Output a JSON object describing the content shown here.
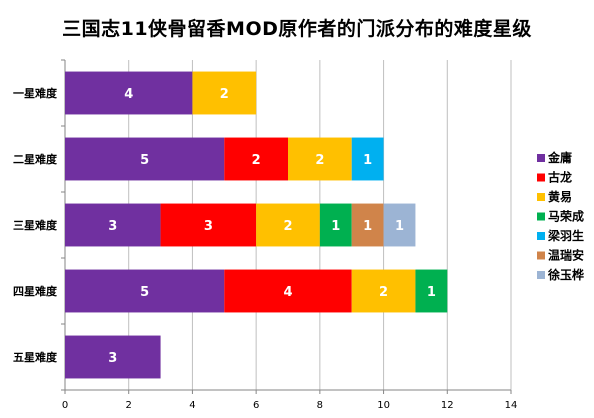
{
  "chart_data": {
    "type": "bar",
    "orientation": "horizontal",
    "stacked": true,
    "title": "三国志11侠骨留香MOD原作者的门派分布的难度星级",
    "categories": [
      "一星难度",
      "二星难度",
      "三星难度",
      "四星难度",
      "五星难度"
    ],
    "series": [
      {
        "name": "金庸",
        "color": "#7030a0",
        "values": [
          4,
          5,
          3,
          5,
          3
        ]
      },
      {
        "name": "古龙",
        "color": "#ff0000",
        "values": [
          0,
          2,
          3,
          4,
          0
        ]
      },
      {
        "name": "黄易",
        "color": "#ffc000",
        "values": [
          2,
          2,
          2,
          2,
          0
        ]
      },
      {
        "name": "马荣成",
        "color": "#00b050",
        "values": [
          0,
          0,
          1,
          1,
          0
        ]
      },
      {
        "name": "梁羽生",
        "color": "#00b0f0",
        "values": [
          0,
          1,
          0,
          0,
          0
        ]
      },
      {
        "name": "温瑞安",
        "color": "#d0844a",
        "values": [
          0,
          0,
          1,
          0,
          0
        ]
      },
      {
        "name": "徐玉桦",
        "color": "#9cb4d4",
        "values": [
          0,
          0,
          1,
          0,
          0
        ]
      }
    ],
    "xlim": [
      0,
      14
    ],
    "xticks": [
      0,
      2,
      4,
      6,
      8,
      10,
      12,
      14
    ],
    "grid": true,
    "legend_position": "right"
  }
}
